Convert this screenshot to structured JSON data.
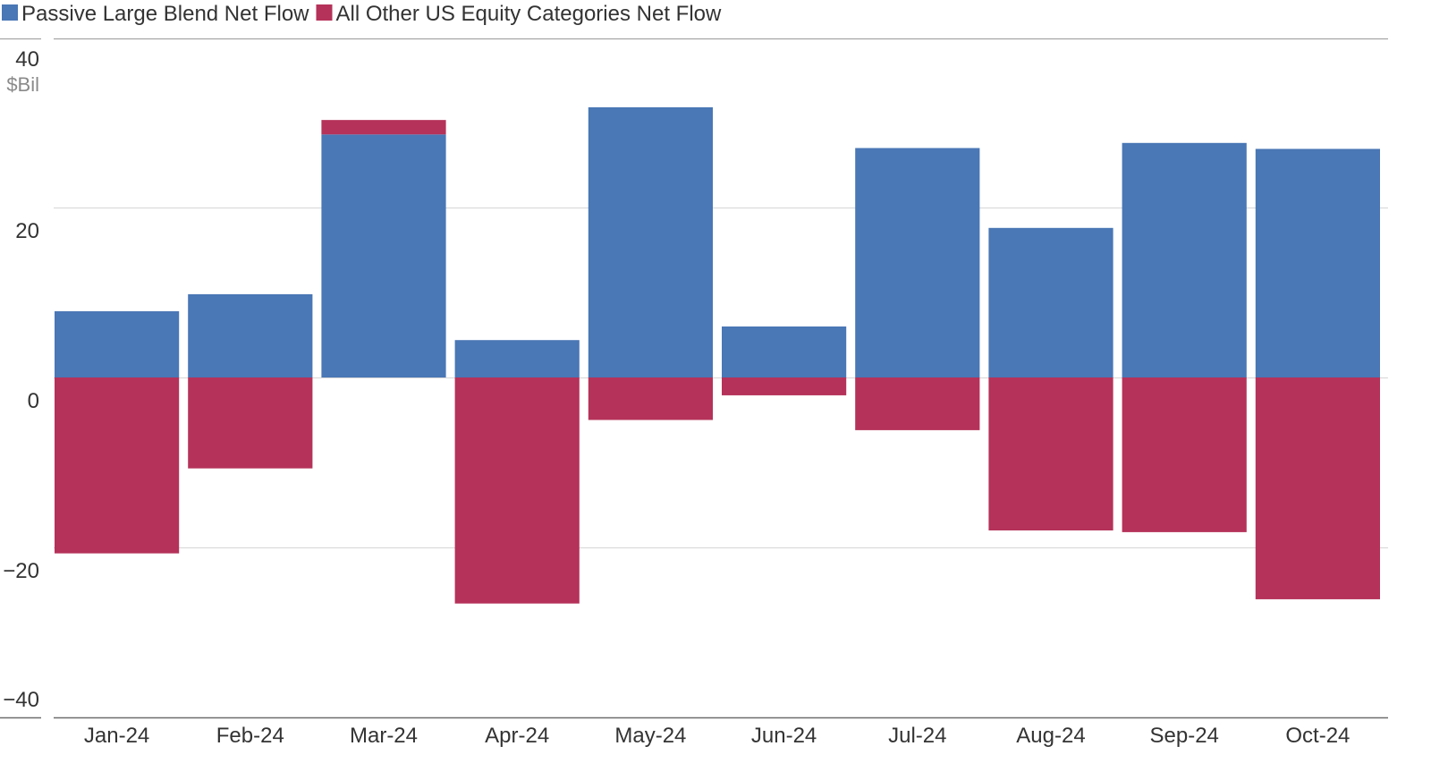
{
  "chart_data": {
    "type": "bar",
    "stacked": true,
    "title": "",
    "xlabel": "",
    "ylabel": "",
    "y_unit": "$Bil",
    "ylim": [
      -40,
      40
    ],
    "y_ticks": [
      40,
      20,
      0,
      -20,
      -40
    ],
    "y_tick_labels": [
      "40",
      "20",
      "0",
      "−20",
      "−40"
    ],
    "grid": true,
    "legend_position": "top-left",
    "categories": [
      "Jan-24",
      "Feb-24",
      "Mar-24",
      "Apr-24",
      "May-24",
      "Jun-24",
      "Jul-24",
      "Aug-24",
      "Sep-24",
      "Oct-24"
    ],
    "series": [
      {
        "name": "Passive Large Blend Net Flow",
        "color": "#4a77b5",
        "values": [
          7.8,
          9.8,
          28.6,
          4.4,
          31.8,
          6.0,
          27.0,
          17.6,
          27.6,
          26.9
        ]
      },
      {
        "name": "All Other US Equity Categories Net Flow",
        "color": "#b5325a",
        "values": [
          -20.7,
          -10.7,
          1.7,
          -26.6,
          -5.0,
          -2.1,
          -6.2,
          -18.0,
          -18.2,
          -26.1
        ]
      }
    ]
  }
}
